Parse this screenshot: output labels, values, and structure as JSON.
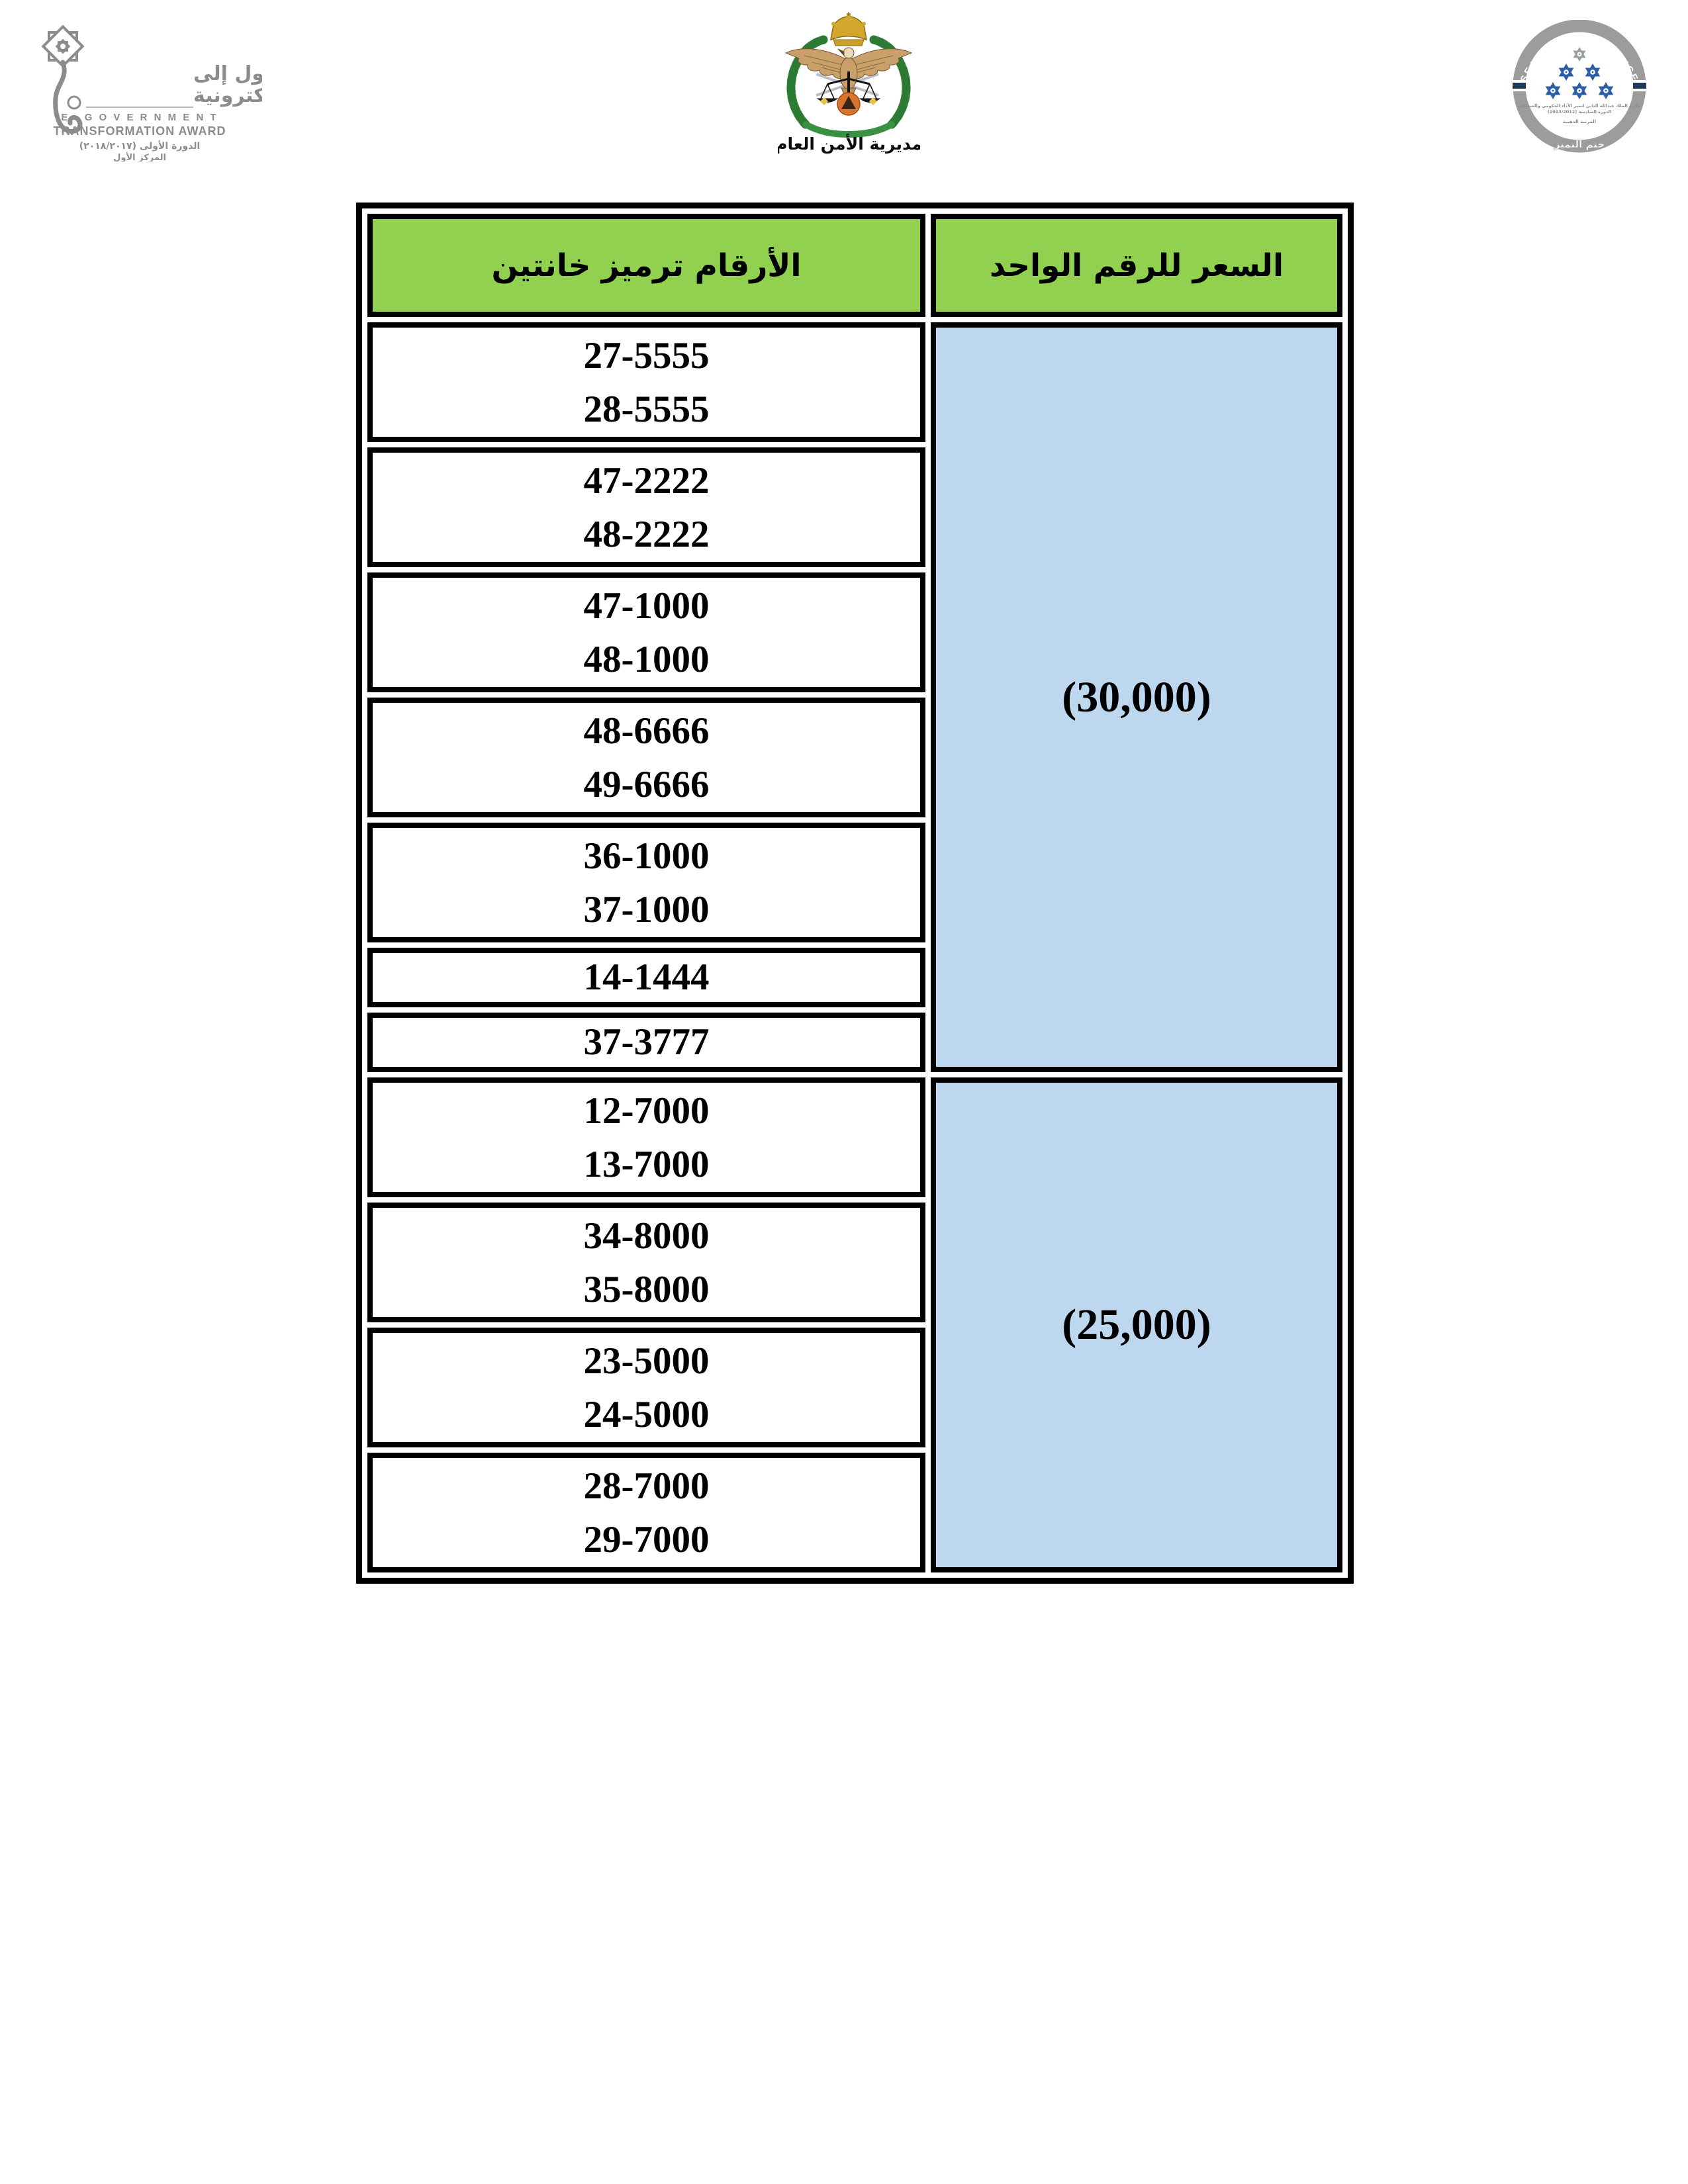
{
  "logos": {
    "egov": {
      "arabic_line1": "جائزة التحول إلى",
      "arabic_line2": "الحكومة الإلكترونية",
      "english_line1": "E - G O V E R N M E N T",
      "english_line2": "TRANSFORMATION AWARD",
      "note_line1": "الدورة الأولى (٢٠١٨/٢٠١٧)",
      "note_line2": "المركز الأول"
    },
    "psd": {
      "title": "مديرية الأمن العام"
    },
    "seal": {
      "ring_text": "SEAL OF EXCELLENCE",
      "small_line1": "جائزة الملك عبدالله الثاني لتميز الأداء الحكومي والشفافية",
      "small_line2": "الدورة السادسة (2013/2012)",
      "small_line3": "المرتبة الذهبية",
      "bottom_text": "ختم التميز"
    }
  },
  "table": {
    "colors": {
      "header_bg": "#92D050",
      "price_bg": "#BDD7EE",
      "border": "#000000"
    },
    "headers": {
      "numbers": "الأرقام ترميز خانتين",
      "price": "السعر  للرقم الواحد"
    },
    "groups": [
      {
        "price": "(30,000)",
        "rows": [
          [
            "27-5555",
            "28-5555"
          ],
          [
            "47-2222",
            "48-2222"
          ],
          [
            "47-1000",
            "48-1000"
          ],
          [
            "48-6666",
            "49-6666"
          ],
          [
            "36-1000",
            "37-1000"
          ],
          [
            "14-1444"
          ],
          [
            "37-3777"
          ]
        ]
      },
      {
        "price": "(25,000)",
        "rows": [
          [
            "12-7000",
            "13-7000"
          ],
          [
            "34-8000",
            "35-8000"
          ],
          [
            "23-5000",
            "24-5000"
          ],
          [
            "28-7000",
            "29-7000"
          ]
        ]
      }
    ]
  }
}
